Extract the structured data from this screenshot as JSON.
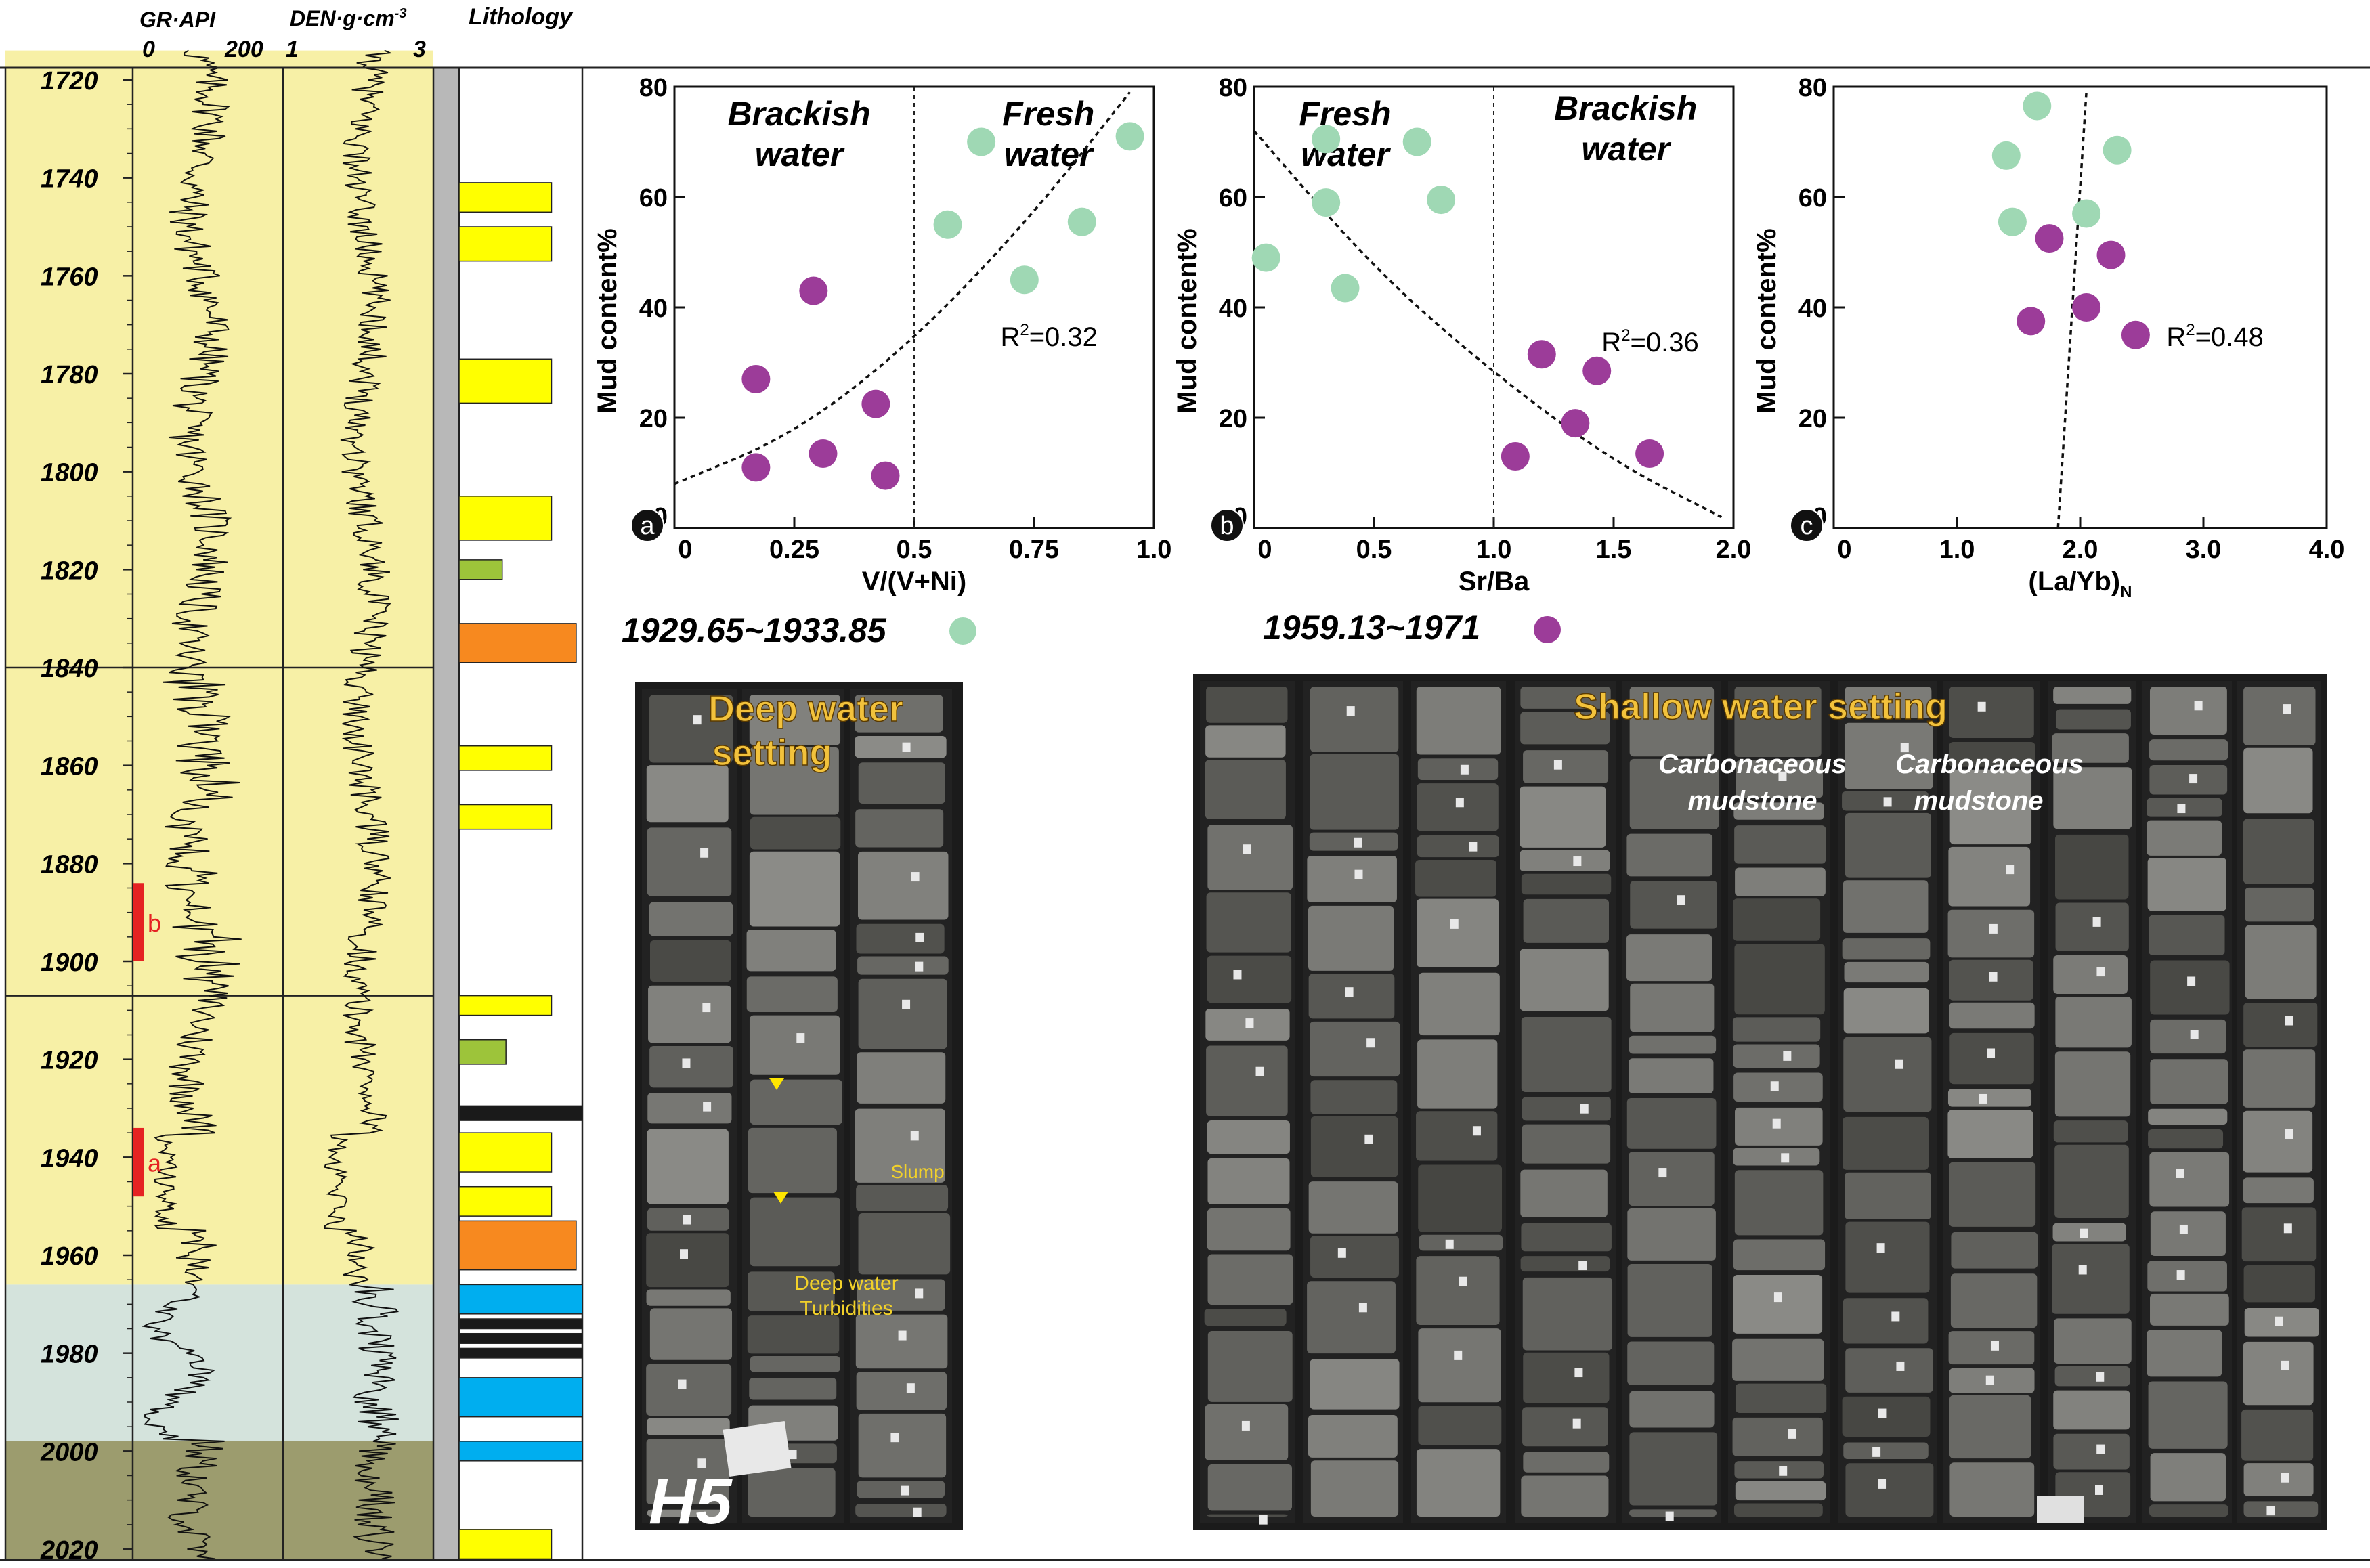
{
  "log_panel": {
    "headers": {
      "gr": "GR·API",
      "den": "DEN·g·cm",
      "den_exp": "-3",
      "lithology": "Lithology"
    },
    "gr_range": [
      "0",
      "200"
    ],
    "den_range": [
      "1",
      "3"
    ],
    "depth_min": 1720,
    "depth_max": 2020,
    "depth_ticks": [
      "1720",
      "1740",
      "1760",
      "1780",
      "1800",
      "1820",
      "1840",
      "1860",
      "1880",
      "1900",
      "1920",
      "1940",
      "1960",
      "1980",
      "2000",
      "2020"
    ],
    "zones": [
      {
        "from": 1714,
        "to": 1966,
        "color": "#f7f0a6"
      },
      {
        "from": 1966,
        "to": 1998,
        "color": "#d4e3dc"
      },
      {
        "from": 1998,
        "to": 2022,
        "color": "#9c9c6e"
      }
    ],
    "zone_dividers": [
      1840,
      1907
    ],
    "sample_markers": [
      {
        "label": "b",
        "from": 1884,
        "to": 1900
      },
      {
        "label": "a",
        "from": 1934,
        "to": 1948
      }
    ],
    "lithology_layers": [
      {
        "from": 1741,
        "to": 1747,
        "color": "#ffff00",
        "width": 0.75
      },
      {
        "from": 1750,
        "to": 1757,
        "color": "#ffff00",
        "width": 0.75
      },
      {
        "from": 1777,
        "to": 1786,
        "color": "#ffff00",
        "width": 0.75
      },
      {
        "from": 1805,
        "to": 1814,
        "color": "#ffff00",
        "width": 0.75
      },
      {
        "from": 1818,
        "to": 1822,
        "color": "#9dc43a",
        "width": 0.35
      },
      {
        "from": 1831,
        "to": 1839,
        "color": "#f7891f",
        "width": 0.95
      },
      {
        "from": 1856,
        "to": 1861,
        "color": "#ffff00",
        "width": 0.75
      },
      {
        "from": 1868,
        "to": 1873,
        "color": "#ffff00",
        "width": 0.75
      },
      {
        "from": 1907,
        "to": 1911,
        "color": "#ffff00",
        "width": 0.75
      },
      {
        "from": 1916,
        "to": 1921,
        "color": "#9dc43a",
        "width": 0.38
      },
      {
        "from": 1929.5,
        "to": 1932.5,
        "color": "#1a1a1a",
        "width": 1.0
      },
      {
        "from": 1935,
        "to": 1943,
        "color": "#ffff00",
        "width": 0.75
      },
      {
        "from": 1946,
        "to": 1952,
        "color": "#ffff00",
        "width": 0.75
      },
      {
        "from": 1953,
        "to": 1963,
        "color": "#f7891f",
        "width": 0.95
      },
      {
        "from": 1966,
        "to": 1972,
        "color": "#00aeef",
        "width": 1.0
      },
      {
        "from": 1973,
        "to": 1975,
        "color": "#1a1a1a",
        "width": 1.0
      },
      {
        "from": 1976,
        "to": 1978,
        "color": "#1a1a1a",
        "width": 1.0
      },
      {
        "from": 1979,
        "to": 1981,
        "color": "#1a1a1a",
        "width": 1.0
      },
      {
        "from": 1985,
        "to": 1993,
        "color": "#00aeef",
        "width": 1.0
      },
      {
        "from": 1998,
        "to": 2002,
        "color": "#00aeef",
        "width": 1.0
      },
      {
        "from": 2016,
        "to": 2022,
        "color": "#ffff00",
        "width": 0.75
      }
    ]
  },
  "chart_data": [
    {
      "type": "scatter",
      "panel": "a",
      "xlabel": "V/(V+Ni)",
      "ylabel": "Mud content%",
      "xlim": [
        0,
        1.0
      ],
      "ylim": [
        0,
        80
      ],
      "xticks": [
        "0",
        "0.25",
        "0.5",
        "0.75",
        "1.0"
      ],
      "yticks": [
        "0",
        "20",
        "40",
        "60",
        "80"
      ],
      "region_labels": [
        {
          "lines": [
            "Brackish",
            "water"
          ],
          "x": 0.26,
          "y": 73
        },
        {
          "lines": [
            "Fresh",
            "water"
          ],
          "x": 0.78,
          "y": 73
        }
      ],
      "divider_x": 0.5,
      "r2": {
        "prefix": "R",
        "sup": "2",
        "value": "=0.32",
        "x": 0.68,
        "y": 33
      },
      "trend": [
        [
          0.0,
          8
        ],
        [
          0.25,
          17
        ],
        [
          0.5,
          34
        ],
        [
          0.75,
          57
        ],
        [
          0.95,
          79
        ]
      ],
      "series": [
        {
          "period": "1929.65~1933.85",
          "color": "#9fd8b4",
          "points": [
            [
              0.57,
              55
            ],
            [
              0.64,
              70
            ],
            [
              0.73,
              45
            ],
            [
              0.85,
              55.5
            ],
            [
              0.95,
              71
            ]
          ]
        },
        {
          "period": "1959.13~1971",
          "color": "#9c3c99",
          "points": [
            [
              0.17,
              27
            ],
            [
              0.17,
              11
            ],
            [
              0.29,
              43
            ],
            [
              0.31,
              13.5
            ],
            [
              0.42,
              22.5
            ],
            [
              0.44,
              9.5
            ]
          ]
        }
      ]
    },
    {
      "type": "scatter",
      "panel": "b",
      "xlabel": "Sr/Ba",
      "ylabel": "Mud content%",
      "xlim": [
        0,
        2.0
      ],
      "ylim": [
        0,
        80
      ],
      "xticks": [
        "0",
        "0.5",
        "1.0",
        "1.5",
        "2.0"
      ],
      "yticks": [
        "0",
        "20",
        "40",
        "60",
        "80"
      ],
      "region_labels": [
        {
          "lines": [
            "Fresh",
            "water"
          ],
          "x": 0.38,
          "y": 73
        },
        {
          "lines": [
            "Brackish",
            "water"
          ],
          "x": 1.55,
          "y": 74
        }
      ],
      "divider_x": 1.0,
      "r2": {
        "prefix": "R",
        "sup": "2",
        "value": "=0.36",
        "x": 1.45,
        "y": 32
      },
      "trend": [
        [
          0.0,
          72
        ],
        [
          0.5,
          47
        ],
        [
          1.0,
          28
        ],
        [
          1.5,
          12
        ],
        [
          1.95,
          2
        ]
      ],
      "series": [
        {
          "period": "1929.65~1933.85",
          "color": "#9fd8b4",
          "points": [
            [
              0.05,
              49
            ],
            [
              0.3,
              59
            ],
            [
              0.3,
              70.5
            ],
            [
              0.38,
              43.5
            ],
            [
              0.68,
              70
            ],
            [
              0.78,
              59.5
            ]
          ]
        },
        {
          "period": "1959.13~1971",
          "color": "#9c3c99",
          "points": [
            [
              1.09,
              13
            ],
            [
              1.2,
              31.5
            ],
            [
              1.34,
              19
            ],
            [
              1.43,
              28.5
            ],
            [
              1.65,
              13.5
            ]
          ]
        }
      ]
    },
    {
      "type": "scatter",
      "panel": "c",
      "xlabel": "(La/Yb)",
      "xlabel_sub": "N",
      "ylabel": "Mud content%",
      "xlim": [
        0,
        4.0
      ],
      "ylim": [
        0,
        80
      ],
      "xticks": [
        "0",
        "1.0",
        "2.0",
        "3.0",
        "4.0"
      ],
      "yticks": [
        "0",
        "20",
        "40",
        "60",
        "80"
      ],
      "region_labels": [],
      "divider_x": null,
      "r2": {
        "prefix": "R",
        "sup": "2",
        "value": "=0.48",
        "x": 2.7,
        "y": 33
      },
      "trend": [
        [
          1.82,
          0
        ],
        [
          2.05,
          79
        ]
      ],
      "series": [
        {
          "period": "1929.65~1933.85",
          "color": "#9fd8b4",
          "points": [
            [
              1.4,
              67.5
            ],
            [
              1.45,
              55.5
            ],
            [
              1.65,
              76.5
            ],
            [
              2.05,
              57
            ],
            [
              2.3,
              68.5
            ]
          ]
        },
        {
          "period": "1959.13~1971",
          "color": "#9c3c99",
          "points": [
            [
              1.6,
              37.5
            ],
            [
              1.75,
              52.5
            ],
            [
              2.05,
              40
            ],
            [
              2.25,
              49.5
            ],
            [
              2.45,
              35
            ]
          ]
        }
      ]
    }
  ],
  "legend": [
    {
      "label": "1929.65~1933.85",
      "color": "#9fd8b4"
    },
    {
      "label": "1959.13~1971",
      "color": "#9c3c99"
    }
  ],
  "photos": {
    "deep": {
      "title_lines": [
        "Deep water",
        "setting"
      ],
      "well": "H5",
      "annotations": {
        "slump": "Slump",
        "turbidities": [
          "Deep water",
          "Turbidities"
        ]
      }
    },
    "shallow": {
      "title": "Shallow water setting",
      "labels": [
        {
          "lines": [
            "Carbonaceous",
            "mudstone"
          ]
        },
        {
          "lines": [
            "Carbonaceous",
            "mudstone"
          ]
        }
      ]
    }
  }
}
